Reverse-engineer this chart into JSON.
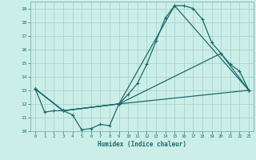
{
  "xlabel": "Humidex (Indice chaleur)",
  "bg_color": "#cceee8",
  "line_color": "#1a6b6b",
  "grid_color": "#aad4cc",
  "xlim": [
    -0.5,
    23.5
  ],
  "ylim": [
    10,
    19.5
  ],
  "yticks": [
    10,
    11,
    12,
    13,
    14,
    15,
    16,
    17,
    18,
    19
  ],
  "xticks": [
    0,
    1,
    2,
    3,
    4,
    5,
    6,
    7,
    8,
    9,
    10,
    11,
    12,
    13,
    14,
    15,
    16,
    17,
    18,
    19,
    20,
    21,
    22,
    23
  ],
  "line1_x": [
    0,
    1,
    2,
    3,
    4,
    5,
    6,
    7,
    8,
    9,
    10,
    11,
    12,
    13,
    14,
    15,
    16,
    17,
    18,
    19,
    20,
    21,
    22,
    23
  ],
  "line1_y": [
    13.1,
    11.4,
    11.5,
    11.5,
    11.2,
    10.1,
    10.2,
    10.5,
    10.4,
    12.0,
    12.7,
    13.5,
    14.9,
    16.6,
    18.3,
    19.2,
    19.2,
    19.0,
    18.2,
    16.5,
    15.7,
    14.9,
    14.4,
    13.0
  ],
  "line2_x": [
    0,
    3,
    9,
    15,
    23
  ],
  "line2_y": [
    13.1,
    11.5,
    12.0,
    19.2,
    13.0
  ],
  "line3_x": [
    0,
    3,
    9,
    20,
    23
  ],
  "line3_y": [
    13.1,
    11.5,
    12.0,
    15.7,
    13.0
  ],
  "line4_x": [
    0,
    3,
    9,
    23
  ],
  "line4_y": [
    13.1,
    11.5,
    12.0,
    13.0
  ]
}
